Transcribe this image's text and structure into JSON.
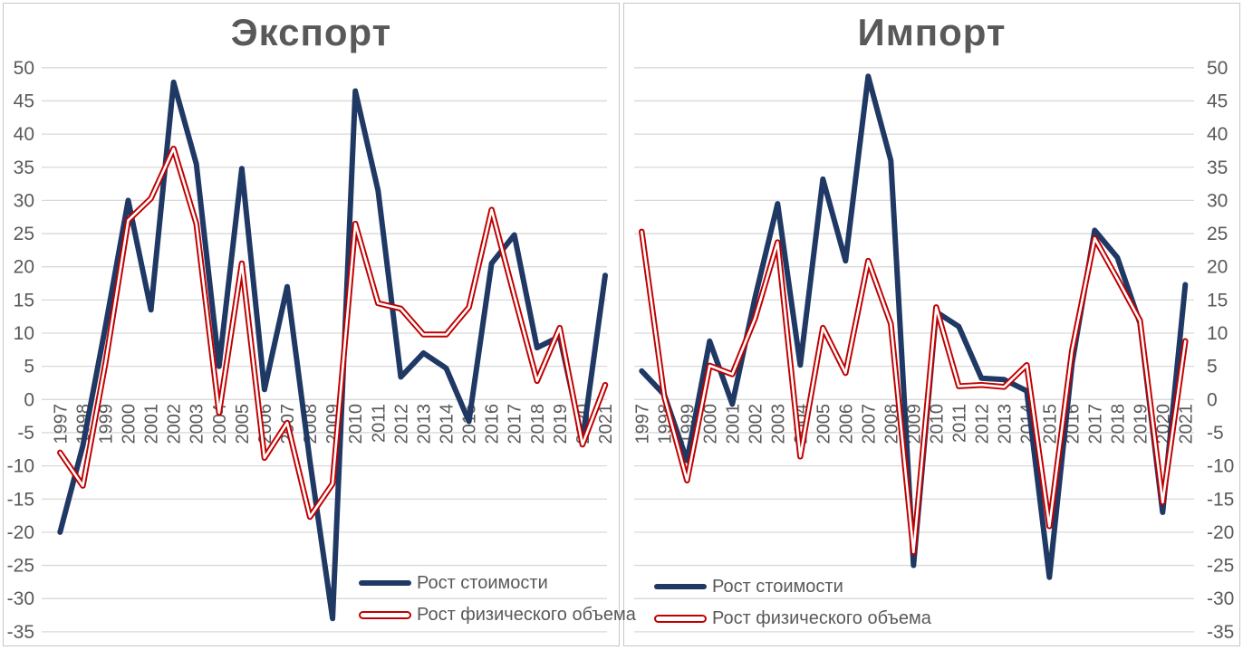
{
  "colors": {
    "value_line": "#1f3864",
    "volume_line": "#c00000",
    "volume_inner": "#ffffff",
    "gridline": "#d9d9d9",
    "text": "#595959",
    "panel_border": "#c9c7c7",
    "background": "#ffffff"
  },
  "charts": [
    {
      "title": "Экспорт",
      "legend": {
        "value_label": "Рост стоимости",
        "volume_label": "Рост физического объема"
      }
    },
    {
      "title": "Импорт",
      "legend": {
        "value_label": "Рост стоимости",
        "volume_label": "Рост физического объема"
      }
    }
  ],
  "chart_data": [
    {
      "type": "line",
      "title": "Экспорт",
      "x": [
        1997,
        1998,
        1999,
        2000,
        2001,
        2002,
        2003,
        2004,
        2005,
        2006,
        2007,
        2008,
        2009,
        2010,
        2011,
        2012,
        2013,
        2014,
        2015,
        2016,
        2017,
        2018,
        2019,
        2020,
        2021
      ],
      "series": [
        {
          "name": "Рост стоимости",
          "values": [
            -20,
            -7,
            11,
            30,
            13.5,
            47.8,
            35.5,
            5,
            34.8,
            1.5,
            17,
            -9.3,
            -33,
            46.5,
            31.5,
            3.4,
            7,
            4.7,
            -3.3,
            20.5,
            24.8,
            7.8,
            9.5,
            -6.2,
            18.7
          ]
        },
        {
          "name": "Рост физического объема",
          "values": [
            -8,
            -13,
            5.5,
            27,
            30.3,
            37.8,
            26.5,
            -2,
            20.5,
            -8.8,
            -3.5,
            -17.7,
            -12.7,
            26.5,
            14.5,
            13.7,
            9.8,
            9.8,
            13.9,
            28.6,
            15.6,
            2.8,
            10.8,
            -6.8,
            2.2
          ]
        }
      ],
      "ylim": [
        -35,
        50
      ],
      "y_ticks": [
        50,
        45,
        40,
        35,
        30,
        25,
        20,
        15,
        10,
        5,
        0,
        -5,
        -10,
        -15,
        -20,
        -25,
        -30,
        -35
      ],
      "y_axis_side": "left",
      "grid": "horizontal",
      "legend_position": "inside-bottom",
      "xlabel": "",
      "ylabel": ""
    },
    {
      "type": "line",
      "title": "Импорт",
      "x": [
        1997,
        1998,
        1999,
        2000,
        2001,
        2002,
        2003,
        2004,
        2005,
        2006,
        2007,
        2008,
        2009,
        2010,
        2011,
        2012,
        2013,
        2014,
        2015,
        2016,
        2017,
        2018,
        2019,
        2020,
        2021
      ],
      "series": [
        {
          "name": "Рост стоимости",
          "values": [
            4.3,
            0.7,
            -9.2,
            8.8,
            -0.7,
            15.3,
            29.5,
            5.2,
            33.2,
            20.9,
            48.7,
            36,
            -25,
            13.2,
            11,
            3.2,
            3,
            1.3,
            -26.8,
            5.4,
            25.5,
            21.4,
            11.5,
            -17,
            17.3
          ]
        },
        {
          "name": "Рост физического объема",
          "values": [
            25.3,
            0.4,
            -12.2,
            5.1,
            3.8,
            12.2,
            23.7,
            -8.6,
            10.8,
            4,
            20.9,
            11.4,
            -23,
            13.9,
            2,
            2.2,
            1.9,
            5.2,
            -19.1,
            7.4,
            24.3,
            18.2,
            11.9,
            -15.5,
            8.8
          ]
        }
      ],
      "ylim": [
        -35,
        50
      ],
      "y_ticks": [
        50,
        45,
        40,
        35,
        30,
        25,
        20,
        15,
        10,
        5,
        0,
        -5,
        -10,
        -15,
        -20,
        -25,
        -30,
        -35
      ],
      "y_axis_side": "right",
      "grid": "horizontal",
      "legend_position": "inside-bottom",
      "xlabel": "",
      "ylabel": ""
    }
  ]
}
